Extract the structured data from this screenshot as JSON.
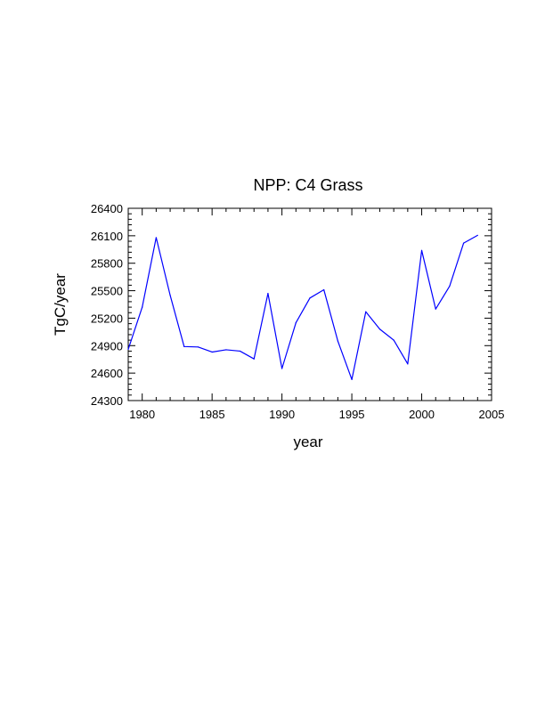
{
  "chart_data": {
    "type": "line",
    "title": "NPP: C4 Grass",
    "xlabel": "year",
    "ylabel": "TgC/year",
    "xlim": [
      1979,
      2005
    ],
    "ylim": [
      24300,
      26400
    ],
    "x_ticks": [
      1980,
      1985,
      1990,
      1995,
      2000,
      2005
    ],
    "y_ticks": [
      24300,
      24600,
      24900,
      25200,
      25500,
      25800,
      26100,
      26400
    ],
    "grid": false,
    "line_color": "#0000ff",
    "series": [
      {
        "name": "NPP C4 Grass",
        "x": [
          1979,
          1980,
          1981,
          1982,
          1983,
          1984,
          1985,
          1986,
          1987,
          1988,
          1989,
          1990,
          1991,
          1992,
          1993,
          1994,
          1995,
          1996,
          1997,
          1998,
          1999,
          2000,
          2001,
          2002,
          2003,
          2004
        ],
        "values": [
          24860,
          25320,
          26080,
          25450,
          24890,
          24885,
          24830,
          24855,
          24840,
          24755,
          25470,
          24650,
          25150,
          25420,
          25510,
          24950,
          24530,
          25270,
          25080,
          24960,
          24700,
          25940,
          25300,
          25550,
          26020,
          26105
        ]
      }
    ]
  }
}
